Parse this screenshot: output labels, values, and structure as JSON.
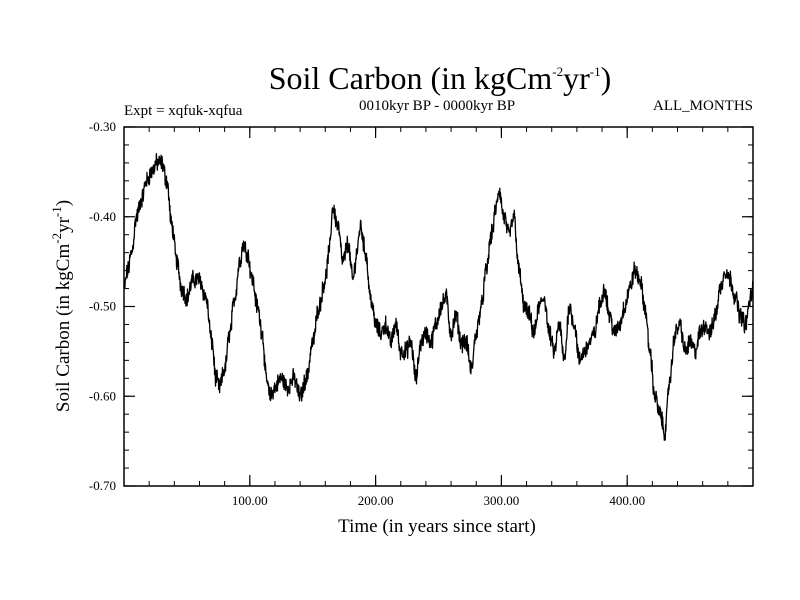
{
  "chart_data": {
    "type": "line",
    "title": "Soil Carbon (in kgCm",
    "title_sup1": "-2",
    "title_mid": "yr",
    "title_sup2": "-1",
    "title_end": ")",
    "left_subtitle": "Expt = xqfuk-xqfua",
    "center_subtitle": "0010kyr BP - 0000kyr BP",
    "right_subtitle": "ALL_MONTHS",
    "xlabel": "Time (in years since start)",
    "ylabel": "Soil Carbon (in kgCm",
    "ylabel_sup1": "-2",
    "ylabel_mid": "yr",
    "ylabel_sup2": "-1",
    "ylabel_end": ")",
    "xlim": [
      0,
      500
    ],
    "ylim": [
      -0.7,
      -0.3
    ],
    "x_ticks": [
      100,
      200,
      300,
      400
    ],
    "x_tick_labels": [
      "100.00",
      "200.00",
      "300.00",
      "400.00"
    ],
    "x_minor_step": 20,
    "y_ticks": [
      -0.7,
      -0.6,
      -0.5,
      -0.4,
      -0.3
    ],
    "y_tick_labels": [
      "-0.70",
      "-0.60",
      "-0.50",
      "-0.40",
      "-0.30"
    ],
    "y_minor_step": 0.02,
    "noise_amplitude": 0.008,
    "series": [
      {
        "name": "Soil Carbon",
        "color": "#000000",
        "x": [
          0,
          3,
          6,
          10,
          14,
          18,
          22,
          26,
          30,
          34,
          38,
          42,
          46,
          50,
          55,
          60,
          65,
          70,
          73,
          76,
          80,
          84,
          88,
          92,
          95,
          98,
          102,
          106,
          110,
          113,
          116,
          120,
          125,
          130,
          135,
          140,
          145,
          150,
          155,
          160,
          163,
          166,
          170,
          174,
          178,
          182,
          185,
          188,
          192,
          196,
          200,
          204,
          208,
          212,
          216,
          220,
          224,
          228,
          232,
          236,
          240,
          244,
          248,
          252,
          256,
          260,
          264,
          268,
          272,
          276,
          280,
          284,
          288,
          292,
          296,
          298,
          302,
          306,
          310,
          314,
          318,
          322,
          326,
          330,
          334,
          338,
          342,
          346,
          350,
          354,
          358,
          362,
          366,
          370,
          374,
          378,
          382,
          386,
          390,
          394,
          398,
          402,
          406,
          410,
          414,
          418,
          422,
          426,
          430,
          434,
          438,
          442,
          446,
          450,
          454,
          458,
          462,
          466,
          470,
          474,
          478,
          482,
          486,
          490,
          494,
          498,
          500
        ],
        "y": [
          -0.48,
          -0.46,
          -0.44,
          -0.4,
          -0.38,
          -0.36,
          -0.35,
          -0.34,
          -0.34,
          -0.36,
          -0.41,
          -0.45,
          -0.48,
          -0.49,
          -0.47,
          -0.47,
          -0.49,
          -0.54,
          -0.58,
          -0.59,
          -0.57,
          -0.53,
          -0.49,
          -0.45,
          -0.43,
          -0.44,
          -0.47,
          -0.5,
          -0.53,
          -0.58,
          -0.6,
          -0.59,
          -0.58,
          -0.59,
          -0.58,
          -0.6,
          -0.58,
          -0.54,
          -0.5,
          -0.47,
          -0.44,
          -0.39,
          -0.41,
          -0.45,
          -0.43,
          -0.47,
          -0.44,
          -0.41,
          -0.44,
          -0.49,
          -0.52,
          -0.53,
          -0.52,
          -0.54,
          -0.52,
          -0.55,
          -0.55,
          -0.54,
          -0.58,
          -0.54,
          -0.53,
          -0.54,
          -0.52,
          -0.5,
          -0.49,
          -0.53,
          -0.51,
          -0.54,
          -0.54,
          -0.57,
          -0.53,
          -0.5,
          -0.46,
          -0.42,
          -0.39,
          -0.37,
          -0.4,
          -0.42,
          -0.4,
          -0.46,
          -0.5,
          -0.51,
          -0.53,
          -0.5,
          -0.49,
          -0.53,
          -0.55,
          -0.52,
          -0.56,
          -0.5,
          -0.52,
          -0.56,
          -0.55,
          -0.54,
          -0.53,
          -0.5,
          -0.48,
          -0.51,
          -0.53,
          -0.52,
          -0.5,
          -0.48,
          -0.46,
          -0.47,
          -0.5,
          -0.55,
          -0.6,
          -0.62,
          -0.64,
          -0.58,
          -0.53,
          -0.52,
          -0.55,
          -0.54,
          -0.55,
          -0.53,
          -0.52,
          -0.53,
          -0.51,
          -0.48,
          -0.46,
          -0.47,
          -0.49,
          -0.51,
          -0.52,
          -0.49,
          -0.48
        ]
      }
    ]
  }
}
